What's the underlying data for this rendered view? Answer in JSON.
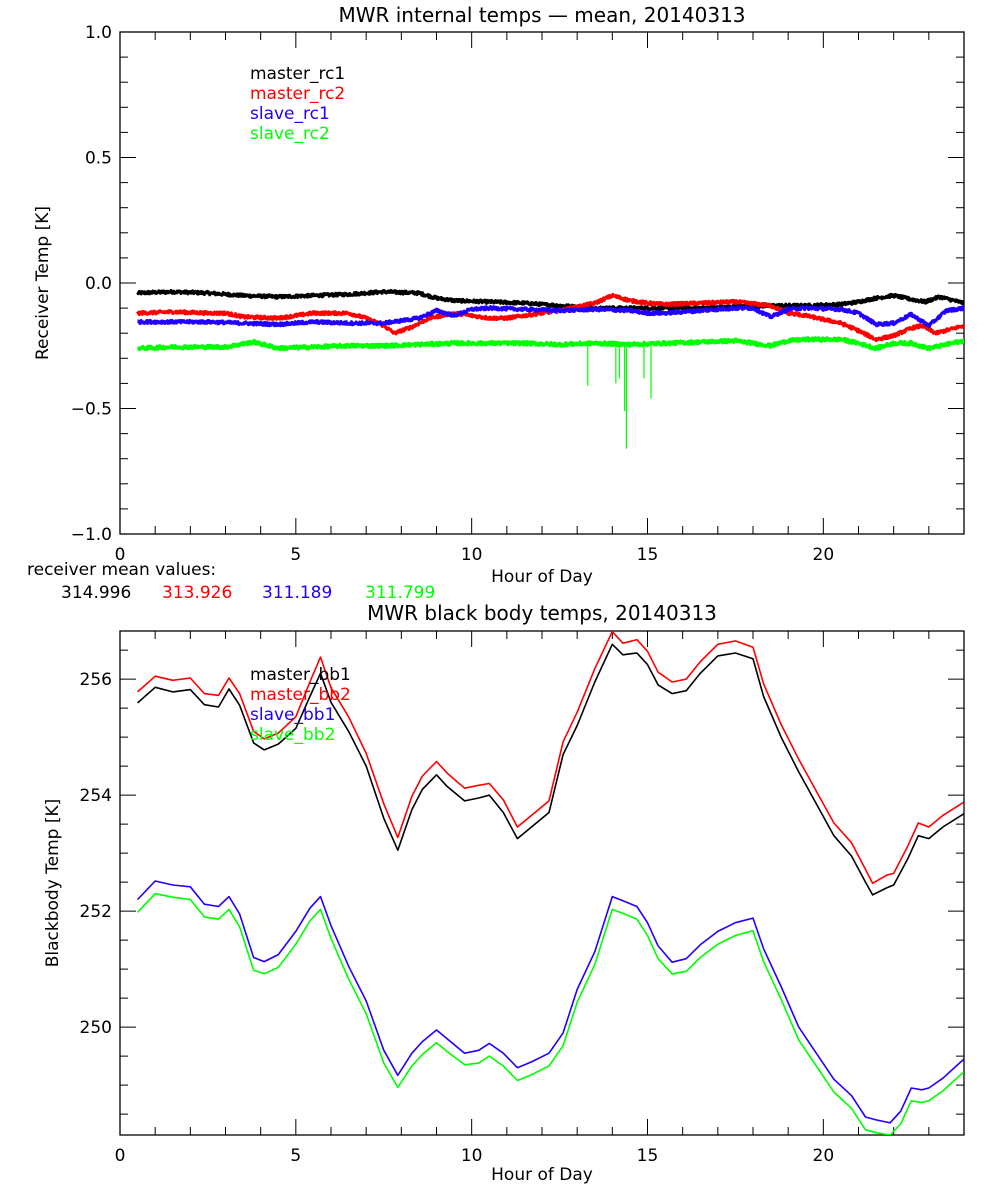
{
  "chart_data": [
    {
      "type": "line",
      "title": "MWR internal temps — mean, 20140313",
      "xlabel": "Hour of Day",
      "ylabel": "Receiver Temp [K]",
      "xlim": [
        0,
        24
      ],
      "ylim": [
        -1.0,
        1.0
      ],
      "xticks": [
        0,
        5,
        10,
        15,
        20
      ],
      "xtick_labels": [
        "0",
        "5",
        "10",
        "15",
        "20"
      ],
      "xminor_step": 1,
      "yticks": [
        -1.0,
        -0.5,
        0.0,
        0.5,
        1.0
      ],
      "ytick_labels": [
        "−1.0",
        "−0.5",
        "0.0",
        "0.5",
        "1.0"
      ],
      "yminor_step": 0.1,
      "grid": false,
      "legend_position": "top-left",
      "series": [
        {
          "name": "master_rc1",
          "color": "#000000",
          "noise": 0.006,
          "x": [
            0.5,
            1.5,
            2.5,
            3.5,
            4.5,
            5.5,
            6.5,
            7.5,
            8.5,
            9.0,
            9.5,
            10.5,
            11.5,
            12.5,
            13.5,
            14.5,
            15.5,
            16.5,
            17.5,
            18.5,
            19.5,
            20.5,
            21.0,
            21.5,
            22.0,
            22.5,
            22.9,
            23.3,
            24.0
          ],
          "y": [
            -0.04,
            -0.035,
            -0.04,
            -0.05,
            -0.055,
            -0.05,
            -0.045,
            -0.035,
            -0.04,
            -0.06,
            -0.07,
            -0.075,
            -0.08,
            -0.09,
            -0.1,
            -0.1,
            -0.1,
            -0.1,
            -0.095,
            -0.09,
            -0.09,
            -0.085,
            -0.075,
            -0.06,
            -0.05,
            -0.065,
            -0.075,
            -0.055,
            -0.08
          ]
        },
        {
          "name": "master_rc2",
          "color": "#ff0000",
          "noise": 0.006,
          "x": [
            0.5,
            1.5,
            2.5,
            3.0,
            3.5,
            4.5,
            5.5,
            6.5,
            7.0,
            7.5,
            7.8,
            8.3,
            8.8,
            9.5,
            10.0,
            10.5,
            11.0,
            11.5,
            12.5,
            13.5,
            14.0,
            14.5,
            15.0,
            15.5,
            16.5,
            17.5,
            18.5,
            19.0,
            19.5,
            20.5,
            21.0,
            21.5,
            22.0,
            22.5,
            22.8,
            23.2,
            24.0
          ],
          "y": [
            -0.12,
            -0.115,
            -0.12,
            -0.12,
            -0.135,
            -0.14,
            -0.12,
            -0.12,
            -0.14,
            -0.17,
            -0.2,
            -0.175,
            -0.14,
            -0.12,
            -0.13,
            -0.14,
            -0.14,
            -0.13,
            -0.11,
            -0.08,
            -0.05,
            -0.07,
            -0.08,
            -0.085,
            -0.08,
            -0.075,
            -0.09,
            -0.12,
            -0.13,
            -0.16,
            -0.19,
            -0.225,
            -0.21,
            -0.18,
            -0.17,
            -0.2,
            -0.17
          ]
        },
        {
          "name": "slave_rc1",
          "color": "#2200ff",
          "noise": 0.006,
          "x": [
            0.5,
            1.5,
            2.5,
            3.5,
            4.5,
            5.5,
            6.5,
            7.5,
            8.5,
            9.0,
            9.5,
            10.0,
            10.5,
            11.5,
            12.5,
            13.5,
            14.5,
            15.0,
            15.5,
            16.5,
            17.5,
            18.0,
            18.5,
            19.0,
            19.5,
            20.5,
            21.0,
            21.5,
            22.0,
            22.5,
            23.0,
            23.5,
            24.0
          ],
          "y": [
            -0.155,
            -0.155,
            -0.155,
            -0.16,
            -0.165,
            -0.155,
            -0.16,
            -0.16,
            -0.14,
            -0.11,
            -0.13,
            -0.105,
            -0.1,
            -0.105,
            -0.11,
            -0.105,
            -0.11,
            -0.12,
            -0.12,
            -0.11,
            -0.1,
            -0.1,
            -0.135,
            -0.105,
            -0.1,
            -0.105,
            -0.12,
            -0.165,
            -0.16,
            -0.125,
            -0.17,
            -0.11,
            -0.1
          ]
        },
        {
          "name": "slave_rc2",
          "color": "#00ff00",
          "noise": 0.007,
          "x": [
            0.5,
            1.5,
            2.5,
            3.0,
            3.8,
            4.5,
            5.5,
            6.5,
            7.5,
            8.5,
            9.5,
            10.5,
            11.5,
            12.5,
            13.5,
            14.5,
            15.5,
            16.5,
            17.5,
            18.5,
            19.0,
            19.5,
            20.5,
            21.0,
            21.5,
            22.0,
            22.5,
            23.0,
            24.0
          ],
          "y": [
            -0.26,
            -0.255,
            -0.255,
            -0.255,
            -0.235,
            -0.26,
            -0.255,
            -0.25,
            -0.25,
            -0.245,
            -0.24,
            -0.24,
            -0.24,
            -0.245,
            -0.24,
            -0.245,
            -0.24,
            -0.235,
            -0.23,
            -0.25,
            -0.23,
            -0.225,
            -0.225,
            -0.24,
            -0.26,
            -0.24,
            -0.24,
            -0.26,
            -0.23
          ],
          "spikes": [
            {
              "x": 13.3,
              "y": -0.41
            },
            {
              "x": 14.1,
              "y": -0.4
            },
            {
              "x": 14.2,
              "y": -0.38
            },
            {
              "x": 14.35,
              "y": -0.51
            },
            {
              "x": 14.4,
              "y": -0.66
            },
            {
              "x": 14.9,
              "y": -0.38
            },
            {
              "x": 15.1,
              "y": -0.46
            }
          ]
        }
      ],
      "annotations": {
        "label": "receiver mean values:",
        "values": [
          {
            "text": "314.996",
            "color": "#000000"
          },
          {
            "text": "313.926",
            "color": "#ff0000"
          },
          {
            "text": "311.189",
            "color": "#2200ff"
          },
          {
            "text": "311.799",
            "color": "#00ff00"
          }
        ]
      }
    },
    {
      "type": "line",
      "title": "MWR black body temps, 20140313",
      "xlabel": "Hour of Day",
      "ylabel": "Blackbody Temp [K]",
      "xlim": [
        0,
        24
      ],
      "ylim": [
        248.14,
        256.83
      ],
      "xticks": [
        0,
        5,
        10,
        15,
        20
      ],
      "xtick_labels": [
        "0",
        "5",
        "10",
        "15",
        "20"
      ],
      "xminor_step": 1,
      "yticks": [
        250,
        252,
        254,
        256
      ],
      "ytick_labels": [
        "250",
        "252",
        "254",
        "256"
      ],
      "yminor_step": 0.5,
      "grid": false,
      "legend_position": "top-left",
      "series": [
        {
          "name": "master_bb1",
          "color": "#000000",
          "x": [
            0.5,
            1.0,
            1.5,
            2.0,
            2.4,
            2.8,
            3.1,
            3.4,
            3.8,
            4.1,
            4.5,
            5.0,
            5.4,
            5.7,
            6.0,
            6.5,
            7.0,
            7.5,
            7.9,
            8.3,
            8.6,
            9.0,
            9.3,
            9.8,
            10.2,
            10.5,
            10.9,
            11.3,
            11.7,
            12.2,
            12.6,
            13.0,
            13.5,
            14.0,
            14.3,
            14.7,
            15.0,
            15.3,
            15.7,
            16.1,
            16.5,
            17.0,
            17.5,
            18.0,
            18.3,
            18.8,
            19.3,
            19.8,
            20.3,
            20.8,
            21.2,
            21.4,
            21.8,
            22.0,
            22.4,
            22.7,
            23.0,
            23.4,
            24.0
          ],
          "y": [
            255.59,
            255.86,
            255.78,
            255.82,
            255.56,
            255.52,
            255.83,
            255.55,
            254.9,
            254.78,
            254.88,
            255.15,
            255.7,
            256.1,
            255.6,
            255.1,
            254.5,
            253.6,
            253.05,
            253.75,
            254.1,
            254.35,
            254.15,
            253.9,
            253.95,
            254.0,
            253.7,
            253.25,
            253.45,
            253.7,
            254.7,
            255.2,
            255.95,
            256.6,
            256.42,
            256.45,
            256.25,
            255.9,
            255.75,
            255.8,
            256.1,
            256.4,
            256.45,
            256.35,
            255.7,
            255.0,
            254.4,
            253.85,
            253.3,
            252.95,
            252.5,
            252.28,
            252.4,
            252.45,
            252.9,
            253.3,
            253.25,
            253.45,
            253.68
          ]
        },
        {
          "name": "master_bb2",
          "color": "#ff0000",
          "x": [
            0.5,
            1.0,
            1.5,
            2.0,
            2.4,
            2.8,
            3.1,
            3.4,
            3.8,
            4.1,
            4.5,
            5.0,
            5.4,
            5.7,
            6.0,
            6.5,
            7.0,
            7.5,
            7.9,
            8.3,
            8.6,
            9.0,
            9.3,
            9.8,
            10.2,
            10.5,
            10.9,
            11.3,
            11.7,
            12.2,
            12.6,
            13.0,
            13.5,
            14.0,
            14.3,
            14.7,
            15.0,
            15.3,
            15.7,
            16.1,
            16.5,
            17.0,
            17.5,
            18.0,
            18.3,
            18.8,
            19.3,
            19.8,
            20.3,
            20.8,
            21.2,
            21.4,
            21.8,
            22.0,
            22.4,
            22.7,
            23.0,
            23.4,
            24.0
          ],
          "y": [
            255.78,
            256.05,
            255.98,
            256.02,
            255.75,
            255.72,
            256.02,
            255.75,
            255.1,
            254.97,
            255.07,
            255.35,
            255.95,
            256.38,
            255.85,
            255.35,
            254.72,
            253.85,
            253.27,
            253.98,
            254.33,
            254.58,
            254.38,
            254.12,
            254.17,
            254.2,
            253.92,
            253.45,
            253.65,
            253.9,
            254.92,
            255.43,
            256.18,
            256.82,
            256.62,
            256.68,
            256.48,
            256.12,
            255.95,
            256.0,
            256.3,
            256.6,
            256.66,
            256.55,
            255.92,
            255.22,
            254.62,
            254.07,
            253.52,
            253.18,
            252.72,
            252.48,
            252.62,
            252.65,
            253.12,
            253.52,
            253.45,
            253.65,
            253.88
          ]
        },
        {
          "name": "slave_bb1",
          "color": "#2200ff",
          "x": [
            0.5,
            1.0,
            1.5,
            2.0,
            2.4,
            2.8,
            3.1,
            3.4,
            3.8,
            4.1,
            4.5,
            5.0,
            5.4,
            5.7,
            6.0,
            6.5,
            7.0,
            7.5,
            7.9,
            8.3,
            8.6,
            9.0,
            9.3,
            9.8,
            10.2,
            10.5,
            10.9,
            11.3,
            11.7,
            12.2,
            12.6,
            13.0,
            13.5,
            14.0,
            14.3,
            14.7,
            15.0,
            15.3,
            15.7,
            16.1,
            16.5,
            17.0,
            17.5,
            18.0,
            18.3,
            18.8,
            19.3,
            19.8,
            20.3,
            20.8,
            21.2,
            21.5,
            21.9,
            22.2,
            22.5,
            22.8,
            23.0,
            23.4,
            24.0
          ],
          "y": [
            252.2,
            252.52,
            252.45,
            252.42,
            252.12,
            252.08,
            252.25,
            251.95,
            251.2,
            251.13,
            251.25,
            251.65,
            252.05,
            252.25,
            251.75,
            251.05,
            250.45,
            249.6,
            249.17,
            249.55,
            249.75,
            249.95,
            249.8,
            249.55,
            249.6,
            249.72,
            249.55,
            249.3,
            249.4,
            249.55,
            249.9,
            250.65,
            251.3,
            252.25,
            252.18,
            252.08,
            251.8,
            251.4,
            251.12,
            251.18,
            251.42,
            251.65,
            251.8,
            251.88,
            251.35,
            250.7,
            250.0,
            249.55,
            249.1,
            248.82,
            248.45,
            248.4,
            248.35,
            248.55,
            248.95,
            248.92,
            248.95,
            249.12,
            249.45
          ]
        },
        {
          "name": "slave_bb2",
          "color": "#00ff00",
          "x": [
            0.5,
            1.0,
            1.5,
            2.0,
            2.4,
            2.8,
            3.1,
            3.4,
            3.8,
            4.1,
            4.5,
            5.0,
            5.4,
            5.7,
            6.0,
            6.5,
            7.0,
            7.5,
            7.9,
            8.3,
            8.6,
            9.0,
            9.3,
            9.8,
            10.2,
            10.5,
            10.9,
            11.3,
            11.7,
            12.2,
            12.6,
            13.0,
            13.5,
            14.0,
            14.3,
            14.7,
            15.0,
            15.3,
            15.7,
            16.1,
            16.5,
            17.0,
            17.5,
            18.0,
            18.3,
            18.8,
            19.3,
            19.8,
            20.3,
            20.8,
            21.2,
            21.5,
            21.9,
            22.2,
            22.5,
            22.8,
            23.0,
            23.4,
            24.0
          ],
          "y": [
            251.98,
            252.3,
            252.24,
            252.2,
            251.9,
            251.86,
            252.03,
            251.73,
            250.98,
            250.92,
            251.03,
            251.43,
            251.83,
            252.03,
            251.53,
            250.83,
            250.23,
            249.38,
            248.96,
            249.33,
            249.53,
            249.73,
            249.58,
            249.35,
            249.38,
            249.5,
            249.33,
            249.08,
            249.18,
            249.33,
            249.68,
            250.43,
            251.08,
            252.03,
            251.96,
            251.86,
            251.58,
            251.18,
            250.92,
            250.96,
            251.2,
            251.43,
            251.58,
            251.66,
            251.13,
            250.48,
            249.78,
            249.33,
            248.88,
            248.6,
            248.23,
            248.18,
            248.14,
            248.33,
            248.73,
            248.7,
            248.73,
            248.9,
            249.23
          ]
        }
      ]
    }
  ]
}
